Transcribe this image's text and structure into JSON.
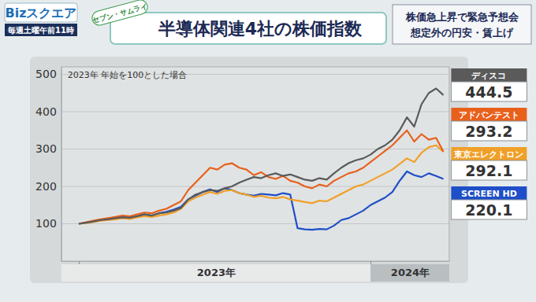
{
  "header": {
    "logo": "Bizスクエア",
    "schedule": "毎週土曜午前11時",
    "badge": "セブン・サムライ",
    "headline": [
      "株価急上昇で緊急予想会",
      "想定外の円安・賃上げ"
    ]
  },
  "chart_data": {
    "type": "line",
    "title": "半導体関連4社の株価指数",
    "subtitle": "2023年 年始を100とした場合",
    "x": [
      2023,
      2023.025,
      2023.05,
      2023.075,
      2023.1,
      2023.125,
      2023.15,
      2023.175,
      2023.2,
      2023.225,
      2023.25,
      2023.275,
      2023.3,
      2023.325,
      2023.35,
      2023.375,
      2023.4,
      2023.425,
      2023.45,
      2023.475,
      2023.5,
      2023.525,
      2023.55,
      2023.575,
      2023.6,
      2023.625,
      2023.65,
      2023.675,
      2023.7,
      2023.725,
      2023.75,
      2023.775,
      2023.8,
      2023.825,
      2023.85,
      2023.875,
      2023.9,
      2023.925,
      2023.95,
      2023.975,
      2024,
      2024.025,
      2024.05,
      2024.075,
      2024.1,
      2024.125,
      2024.15,
      2024.175,
      2024.2,
      2024.225,
      2024.25
    ],
    "series": [
      {
        "name": "ディスコ",
        "color": "#5a5a5a",
        "values": [
          100,
          103,
          106,
          110,
          112,
          115,
          117,
          116,
          120,
          125,
          122,
          128,
          130,
          135,
          142,
          165,
          178,
          185,
          190,
          188,
          195,
          200,
          210,
          218,
          225,
          222,
          230,
          235,
          228,
          232,
          225,
          218,
          215,
          222,
          218,
          235,
          250,
          262,
          270,
          275,
          285,
          300,
          310,
          325,
          350,
          385,
          360,
          420,
          450,
          462,
          444.5
        ]
      },
      {
        "name": "アドバンテスト",
        "color": "#e8601c",
        "values": [
          100,
          104,
          108,
          112,
          115,
          118,
          122,
          120,
          125,
          130,
          128,
          135,
          140,
          150,
          160,
          190,
          210,
          230,
          250,
          245,
          258,
          262,
          250,
          245,
          230,
          238,
          225,
          220,
          228,
          215,
          210,
          200,
          195,
          205,
          200,
          215,
          225,
          235,
          240,
          250,
          265,
          280,
          295,
          310,
          330,
          350,
          320,
          340,
          325,
          330,
          293.2
        ]
      },
      {
        "name": "東京エレクトロン",
        "color": "#f0a028",
        "values": [
          100,
          102,
          105,
          108,
          110,
          112,
          115,
          113,
          117,
          120,
          118,
          122,
          125,
          130,
          140,
          160,
          170,
          178,
          185,
          180,
          188,
          190,
          182,
          178,
          172,
          175,
          170,
          168,
          172,
          165,
          162,
          158,
          155,
          162,
          160,
          170,
          180,
          190,
          200,
          205,
          215,
          225,
          235,
          245,
          260,
          275,
          265,
          290,
          305,
          310,
          292.1
        ]
      },
      {
        "name": "SCREEN HD",
        "color": "#1f4fc8",
        "values": [
          100,
          103,
          106,
          110,
          112,
          115,
          118,
          116,
          120,
          125,
          122,
          128,
          132,
          138,
          145,
          165,
          175,
          185,
          192,
          185,
          195,
          190,
          182,
          178,
          175,
          180,
          178,
          176,
          182,
          178,
          88,
          85,
          84,
          86,
          85,
          95,
          110,
          115,
          125,
          135,
          150,
          160,
          170,
          185,
          215,
          240,
          230,
          225,
          235,
          228,
          220.1
        ]
      }
    ],
    "xlim": [
      2022.94,
      2024.27
    ],
    "xticks": [
      {
        "value": 2023,
        "label": "2023年"
      },
      {
        "value": 2024,
        "label": "2024年"
      }
    ],
    "ylim": [
      0,
      520
    ],
    "yticks": [
      100,
      200,
      300,
      400,
      500
    ],
    "grid": true,
    "legend": "right"
  }
}
